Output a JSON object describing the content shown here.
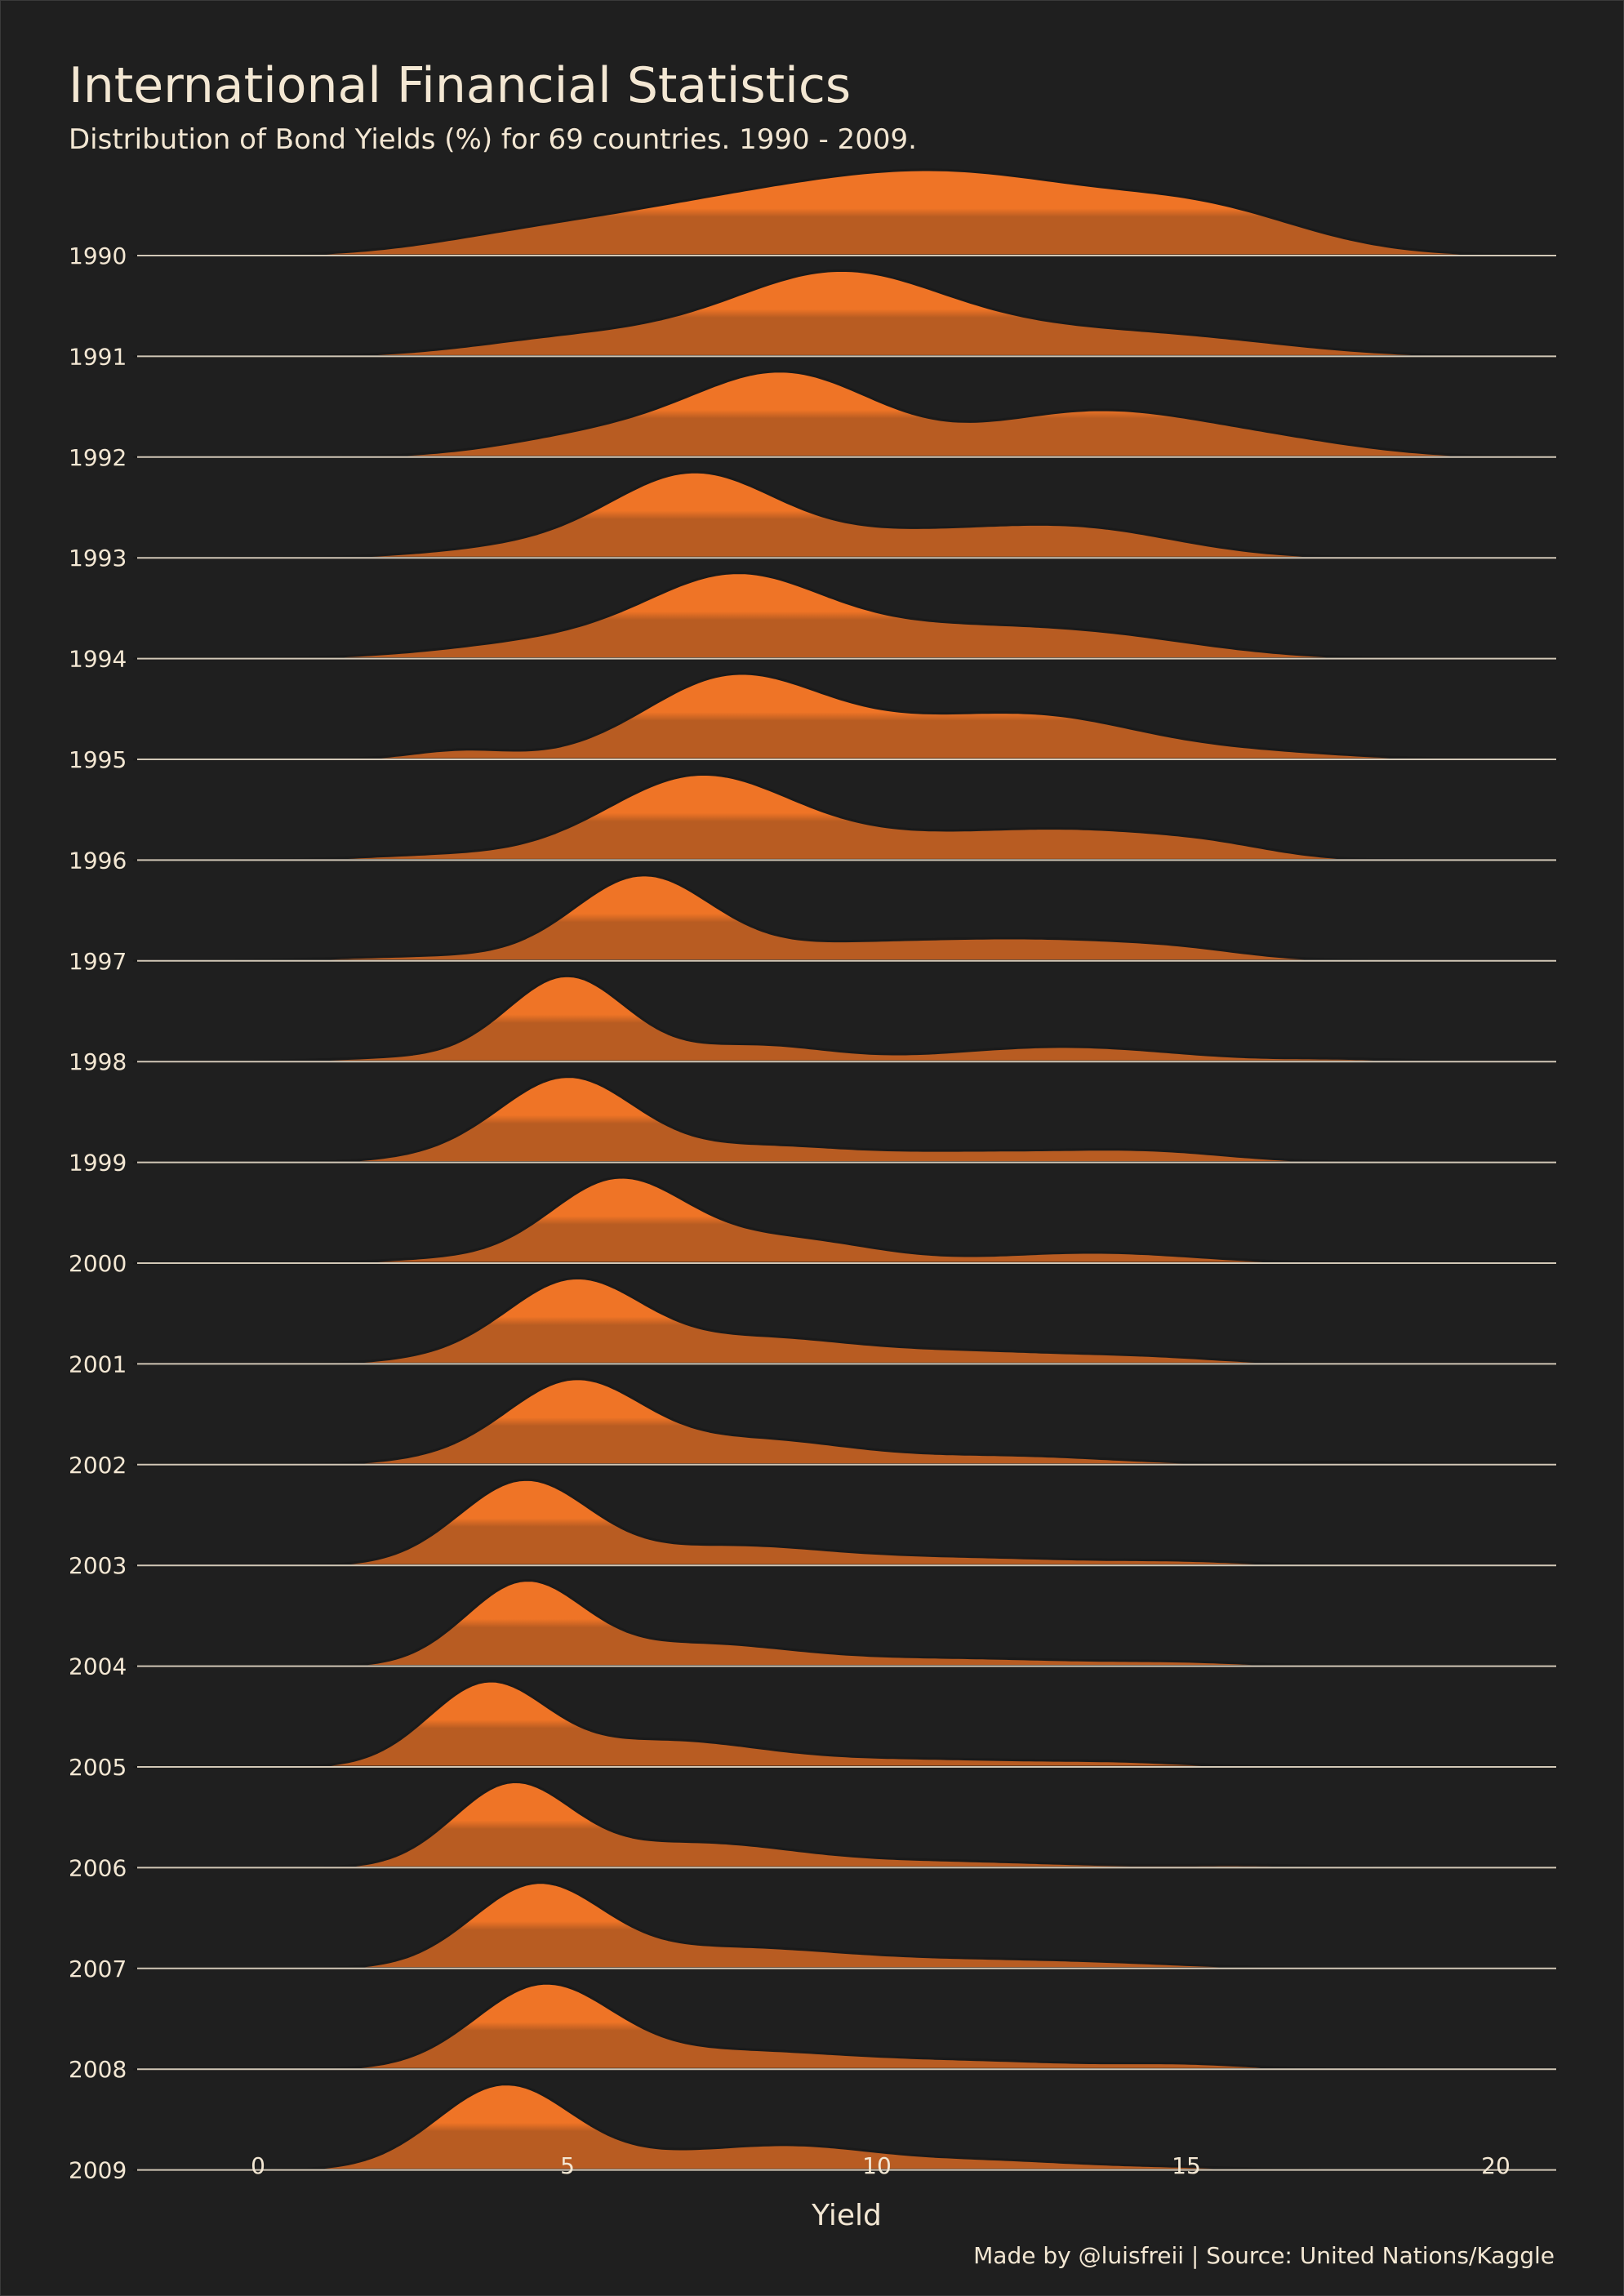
{
  "chart_data": {
    "type": "ridgeline",
    "title": "International Financial Statistics",
    "subtitle": "Distribution of Bond Yields (%) for 69 countries. 1990 - 2009.",
    "xlabel": "Yield",
    "caption": "Made by @luisfreii | Source: United Nations/Kaggle",
    "xlim": [
      -2,
      21
    ],
    "x_ticks": [
      0,
      5,
      10,
      15,
      20
    ],
    "colors": {
      "background": "#1f1f1f",
      "fill_low": "#b85c22",
      "fill_high": "#ef7426",
      "outline": "#1a1a1a",
      "baseline": "#f3e7d3",
      "text": "#f3e7d3"
    },
    "series": [
      {
        "name": "1990",
        "peak": 1.0,
        "components": [
          [
            11.0,
            3.0,
            1.0
          ],
          [
            6.5,
            2.0,
            0.25
          ],
          [
            4.0,
            1.5,
            0.12
          ],
          [
            15.5,
            1.5,
            0.3
          ]
        ]
      },
      {
        "name": "1991",
        "peak": 1.0,
        "components": [
          [
            9.5,
            1.6,
            1.0
          ],
          [
            7.0,
            2.2,
            0.35
          ],
          [
            14.5,
            2.0,
            0.3
          ],
          [
            12.0,
            1.5,
            0.2
          ],
          [
            4.5,
            1.3,
            0.08
          ]
        ]
      },
      {
        "name": "1992",
        "peak": 1.0,
        "components": [
          [
            8.5,
            1.5,
            1.0
          ],
          [
            13.5,
            1.8,
            0.55
          ],
          [
            5.5,
            1.5,
            0.25
          ],
          [
            16.5,
            1.5,
            0.15
          ]
        ]
      },
      {
        "name": "1993",
        "peak": 1.0,
        "components": [
          [
            7.0,
            1.3,
            1.0
          ],
          [
            10.5,
            2.5,
            0.35
          ],
          [
            13.5,
            1.5,
            0.25
          ],
          [
            4.5,
            1.5,
            0.15
          ]
        ]
      },
      {
        "name": "1994",
        "peak": 1.0,
        "components": [
          [
            7.7,
            1.4,
            1.0
          ],
          [
            10.5,
            1.8,
            0.35
          ],
          [
            13.5,
            1.8,
            0.3
          ],
          [
            5.0,
            1.8,
            0.25
          ]
        ]
      },
      {
        "name": "1995",
        "peak": 1.0,
        "components": [
          [
            7.6,
            1.4,
            1.0
          ],
          [
            10.5,
            1.8,
            0.4
          ],
          [
            13.0,
            1.5,
            0.4
          ],
          [
            3.3,
            0.8,
            0.12
          ],
          [
            16.0,
            1.5,
            0.1
          ]
        ]
      },
      {
        "name": "1996",
        "peak": 1.0,
        "components": [
          [
            7.1,
            1.5,
            1.0
          ],
          [
            10.5,
            1.8,
            0.25
          ],
          [
            13.5,
            1.6,
            0.3
          ],
          [
            3.0,
            1.3,
            0.06
          ],
          [
            15.5,
            1.0,
            0.1
          ]
        ]
      },
      {
        "name": "1997",
        "peak": 1.0,
        "components": [
          [
            6.2,
            1.1,
            1.0
          ],
          [
            9.5,
            2.0,
            0.2
          ],
          [
            13.0,
            1.8,
            0.22
          ],
          [
            3.0,
            1.6,
            0.06
          ],
          [
            15.0,
            1.0,
            0.06
          ]
        ]
      },
      {
        "name": "1998",
        "peak": 1.0,
        "components": [
          [
            5.0,
            0.95,
            1.0
          ],
          [
            8.0,
            1.2,
            0.2
          ],
          [
            13.0,
            1.8,
            0.18
          ],
          [
            3.0,
            1.5,
            0.06
          ],
          [
            17.5,
            1.0,
            0.03
          ]
        ]
      },
      {
        "name": "1999",
        "peak": 1.0,
        "components": [
          [
            5.0,
            1.1,
            1.0
          ],
          [
            8.0,
            1.3,
            0.17
          ],
          [
            11.5,
            2.0,
            0.13
          ],
          [
            14.5,
            1.3,
            0.1
          ],
          [
            3.0,
            1.0,
            0.05
          ]
        ]
      },
      {
        "name": "2000",
        "peak": 1.0,
        "components": [
          [
            5.8,
            1.1,
            1.0
          ],
          [
            8.5,
            1.4,
            0.3
          ],
          [
            13.5,
            1.6,
            0.13
          ],
          [
            3.0,
            1.0,
            0.05
          ]
        ]
      },
      {
        "name": "2001",
        "peak": 1.0,
        "components": [
          [
            5.1,
            1.1,
            1.0
          ],
          [
            8.0,
            1.5,
            0.3
          ],
          [
            11.5,
            1.8,
            0.15
          ],
          [
            14.5,
            1.2,
            0.06
          ],
          [
            3.0,
            1.0,
            0.05
          ]
        ]
      },
      {
        "name": "2002",
        "peak": 1.0,
        "components": [
          [
            5.1,
            1.1,
            1.0
          ],
          [
            8.0,
            1.5,
            0.3
          ],
          [
            12.0,
            1.8,
            0.11
          ],
          [
            17.5,
            1.0,
            0.03
          ],
          [
            3.0,
            1.0,
            0.05
          ]
        ]
      },
      {
        "name": "2003",
        "peak": 1.0,
        "components": [
          [
            4.3,
            1.05,
            1.0
          ],
          [
            7.5,
            1.5,
            0.2
          ],
          [
            11.0,
            2.5,
            0.1
          ],
          [
            15.0,
            1.0,
            0.03
          ]
        ]
      },
      {
        "name": "2004",
        "peak": 1.0,
        "components": [
          [
            4.3,
            0.95,
            1.0
          ],
          [
            7.0,
            1.5,
            0.25
          ],
          [
            11.0,
            2.5,
            0.1
          ],
          [
            15.0,
            1.0,
            0.03
          ]
        ]
      },
      {
        "name": "2005",
        "peak": 1.0,
        "components": [
          [
            3.7,
            0.95,
            1.0
          ],
          [
            6.5,
            1.5,
            0.3
          ],
          [
            10.5,
            2.5,
            0.1
          ],
          [
            14.0,
            1.0,
            0.03
          ]
        ]
      },
      {
        "name": "2006",
        "peak": 1.0,
        "components": [
          [
            4.1,
            0.95,
            1.0
          ],
          [
            7.0,
            1.6,
            0.3
          ],
          [
            11.0,
            2.0,
            0.08
          ],
          [
            16.0,
            1.2,
            0.03
          ]
        ]
      },
      {
        "name": "2007",
        "peak": 1.0,
        "components": [
          [
            4.5,
            1.05,
            1.0
          ],
          [
            7.5,
            1.8,
            0.25
          ],
          [
            11.5,
            2.0,
            0.1
          ],
          [
            14.0,
            1.5,
            0.03
          ]
        ]
      },
      {
        "name": "2008",
        "peak": 1.0,
        "components": [
          [
            4.6,
            1.1,
            1.0
          ],
          [
            7.5,
            1.8,
            0.22
          ],
          [
            11.5,
            2.0,
            0.1
          ],
          [
            15.0,
            1.0,
            0.05
          ]
        ]
      },
      {
        "name": "2009",
        "peak": 1.0,
        "components": [
          [
            4.0,
            1.1,
            1.0
          ],
          [
            8.5,
            1.3,
            0.25
          ],
          [
            11.5,
            1.8,
            0.12
          ],
          [
            6.5,
            1.0,
            0.1
          ],
          [
            15.0,
            1.0,
            0.02
          ]
        ]
      }
    ]
  }
}
